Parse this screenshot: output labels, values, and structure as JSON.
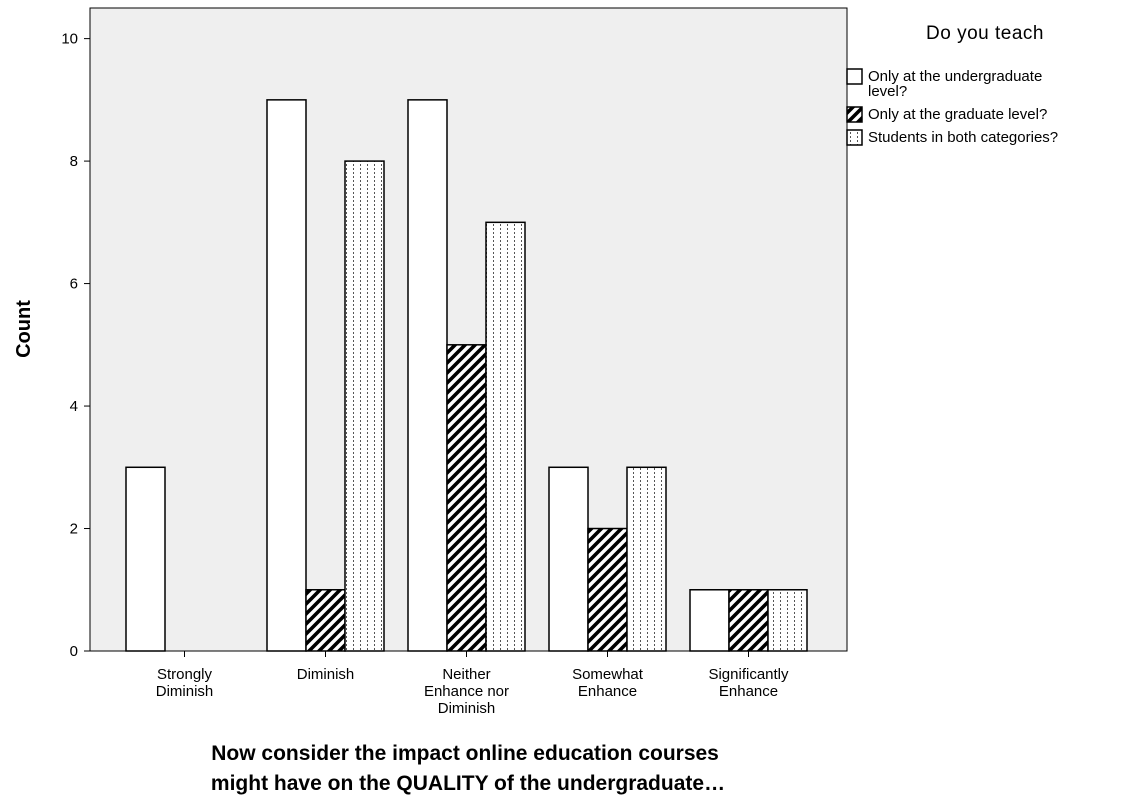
{
  "chart_data": {
    "type": "bar",
    "categories": [
      [
        "Strongly",
        "Diminish"
      ],
      [
        "Diminish"
      ],
      [
        "Neither",
        "Enhance nor",
        "Diminish"
      ],
      [
        "Somewhat",
        "Enhance"
      ],
      [
        "Significantly",
        "Enhance"
      ]
    ],
    "series": [
      {
        "name": [
          "Only at the undergraduate",
          "level?"
        ],
        "pattern": "empty",
        "values": [
          3,
          9,
          9,
          3,
          1
        ]
      },
      {
        "name": [
          "Only at the graduate level?"
        ],
        "pattern": "hatch",
        "values": [
          0,
          1,
          5,
          2,
          1
        ]
      },
      {
        "name": [
          "Students in both categories?"
        ],
        "pattern": "dotted",
        "values": [
          0,
          8,
          7,
          3,
          1
        ]
      }
    ],
    "legend_title": "Do you teach",
    "xlabel": [
      "Now consider the impact online education courses",
      "might have on the QUALITY of the undergraduate…"
    ],
    "ylabel": "Count",
    "ylim": [
      0,
      10.5
    ],
    "yticks": [
      0,
      2,
      4,
      6,
      8,
      10
    ],
    "grid": false,
    "legend_position": "top-right",
    "colors": {
      "plot_background": "#efefef",
      "bar_fill": "#ffffff",
      "stroke": "#000000"
    }
  }
}
